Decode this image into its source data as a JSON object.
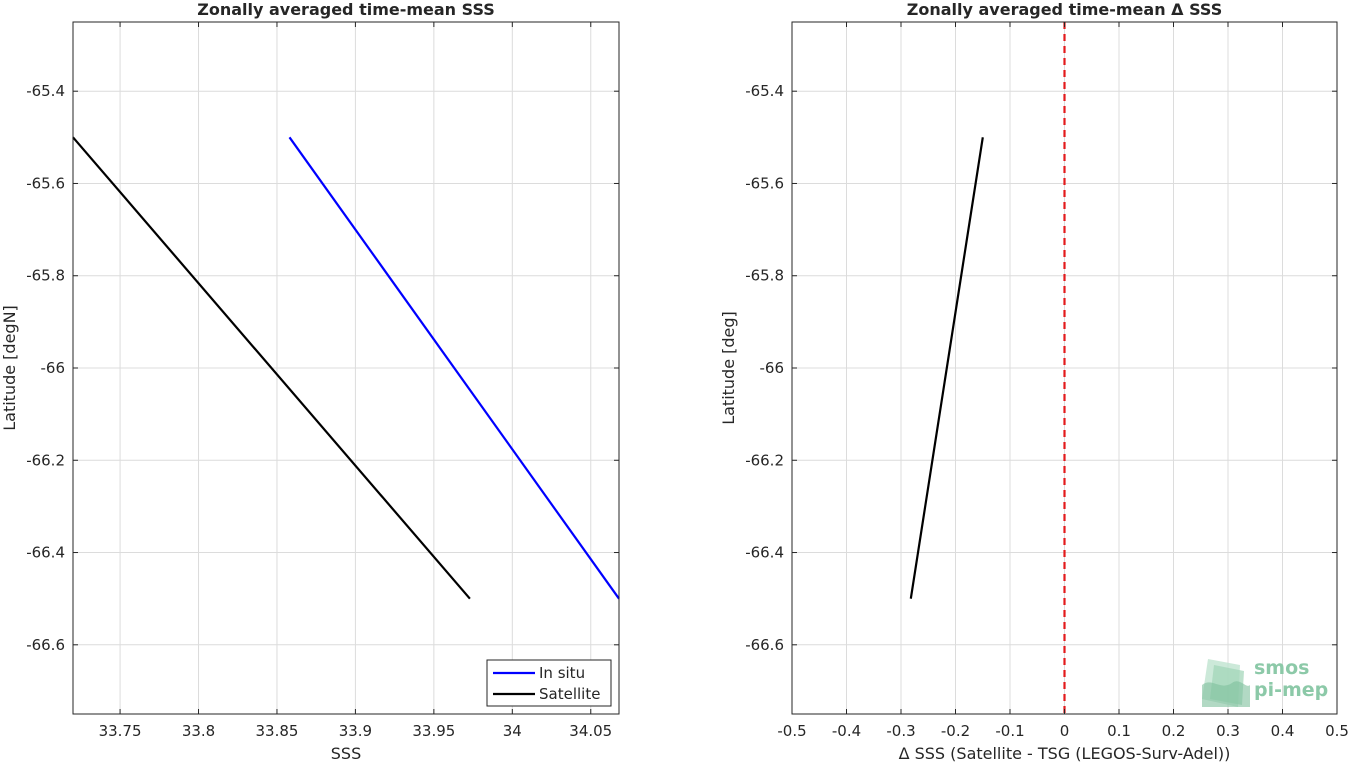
{
  "chart_data": [
    {
      "type": "line",
      "title": "Zonally averaged time-mean SSS",
      "xlabel": "SSS",
      "ylabel": "Latitude [degN]",
      "xlim": [
        33.72,
        34.068
      ],
      "ylim": [
        -66.75,
        -65.25
      ],
      "xticks": [
        33.75,
        33.8,
        33.85,
        33.9,
        33.95,
        34,
        34.05
      ],
      "xtick_labels": [
        "33.75",
        "33.8",
        "33.85",
        "33.9",
        "33.95",
        "34",
        "34.05"
      ],
      "yticks": [
        -65.4,
        -65.6,
        -65.8,
        -66,
        -66.2,
        -66.4,
        -66.6
      ],
      "ytick_labels": [
        "-65.4",
        "-65.6",
        "-65.8",
        "-66",
        "-66.2",
        "-66.4",
        "-66.6"
      ],
      "grid": true,
      "legend_position": "bottom-right",
      "series": [
        {
          "name": "In situ",
          "color": "#0000ff",
          "x": [
            33.858,
            34.068
          ],
          "y": [
            -65.5,
            -66.5
          ]
        },
        {
          "name": "Satellite",
          "color": "#000000",
          "x": [
            33.72,
            33.973
          ],
          "y": [
            -65.5,
            -66.5
          ]
        }
      ]
    },
    {
      "type": "line",
      "title": "Zonally averaged time-mean Δ SSS",
      "xlabel": "Δ SSS (Satellite - TSG (LEGOS-Surv-Adel))",
      "ylabel": "Latitude [deg]",
      "xlim": [
        -0.5,
        0.5
      ],
      "ylim": [
        -66.75,
        -65.25
      ],
      "xticks": [
        -0.5,
        -0.4,
        -0.3,
        -0.2,
        -0.1,
        0,
        0.1,
        0.2,
        0.3,
        0.4,
        0.5
      ],
      "xtick_labels": [
        "-0.5",
        "-0.4",
        "-0.3",
        "-0.2",
        "-0.1",
        "0",
        "0.1",
        "0.2",
        "0.3",
        "0.4",
        "0.5"
      ],
      "yticks": [
        -65.4,
        -65.6,
        -65.8,
        -66,
        -66.2,
        -66.4,
        -66.6
      ],
      "ytick_labels": [
        "-65.4",
        "-65.6",
        "-65.8",
        "-66",
        "-66.2",
        "-66.4",
        "-66.6"
      ],
      "grid": true,
      "series": [
        {
          "color": "#000000",
          "x": [
            -0.15,
            -0.282
          ],
          "y": [
            -65.5,
            -66.5
          ]
        }
      ],
      "reference_line": {
        "x": 0,
        "color": "#e31a1c",
        "style": "dashed"
      }
    }
  ],
  "logo": {
    "line1": "smos",
    "line2": "pi-mep",
    "color": "#8cc9a8"
  }
}
